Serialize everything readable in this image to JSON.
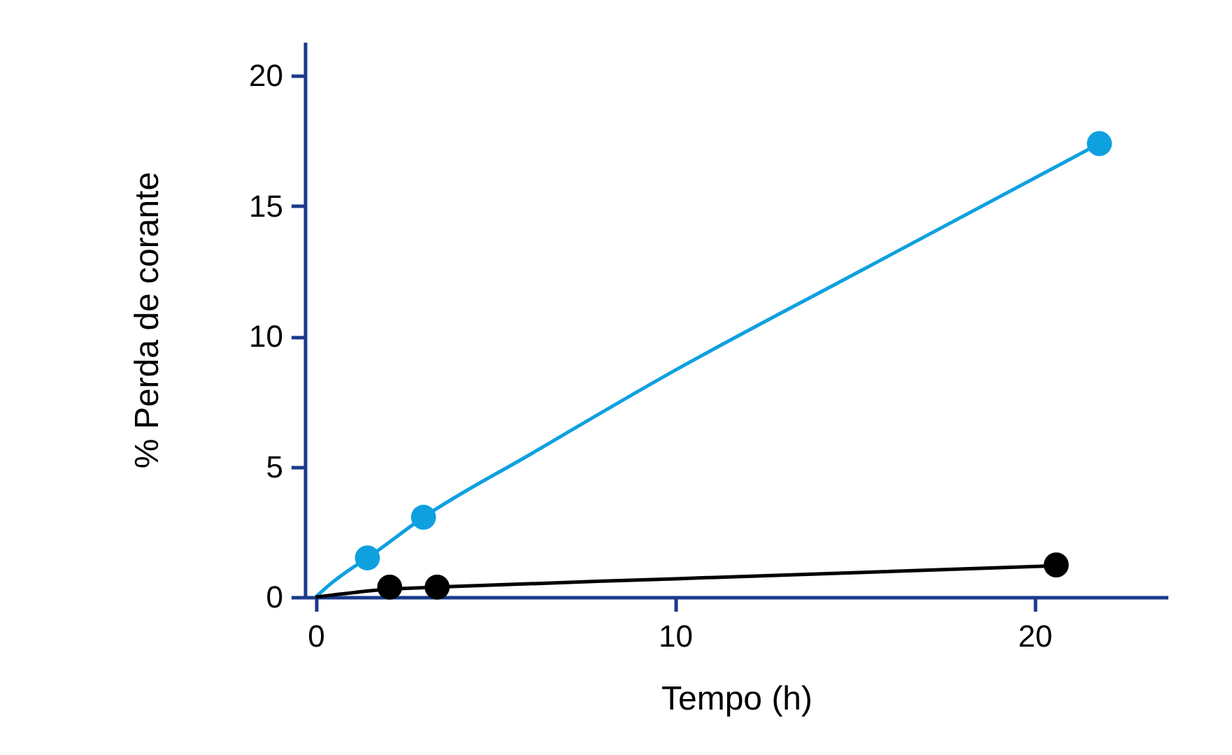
{
  "chart_data": {
    "type": "scatter",
    "xlabel": "Tempo (h)",
    "ylabel": "% Perda de corante",
    "xlim": [
      -0.3,
      23.7
    ],
    "ylim": [
      0,
      21.3
    ],
    "xticks": [
      0,
      10,
      20
    ],
    "yticks": [
      0,
      5,
      10,
      15,
      20
    ],
    "grid": false,
    "marker": "circle",
    "series": [
      {
        "type": "line",
        "marker": "none",
        "color": "#0fa0e0",
        "x": [
          0,
          0.5,
          1,
          1.44,
          3,
          6,
          10,
          15,
          21.8
        ],
        "values": [
          0,
          0.6,
          1.1,
          1.5,
          3.06,
          5.5,
          8.7,
          12.4,
          17.4
        ]
      },
      {
        "type": "line",
        "marker": "none",
        "color": "#000000",
        "x": [
          0,
          2.06,
          3.38,
          10,
          20.6
        ],
        "values": [
          0,
          0.3,
          0.38,
          0.7,
          1.2
        ]
      },
      {
        "color": "#0fa0e0",
        "x": [
          1.44,
          3,
          21.8
        ],
        "values": [
          1.5,
          3.06,
          17.4
        ]
      },
      {
        "color": "#000000",
        "x": [
          2.06,
          3.38,
          20.6
        ],
        "values": [
          0.38,
          0.38,
          1.23
        ]
      }
    ]
  }
}
